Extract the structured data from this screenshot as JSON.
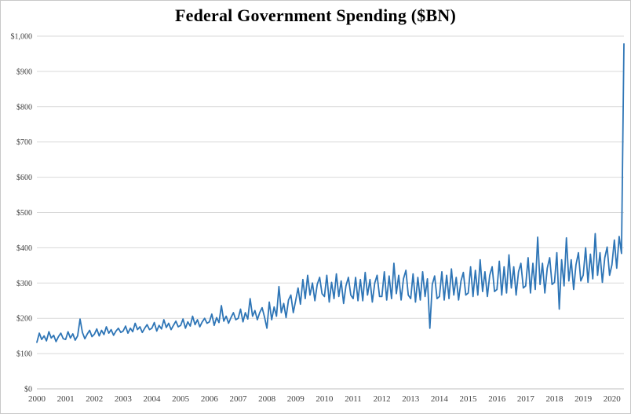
{
  "chart_data": {
    "type": "line",
    "title": "Federal Government Spending ($BN)",
    "xlabel": "",
    "ylabel": "",
    "ylim": [
      0,
      1000
    ],
    "ytick_step": 100,
    "ytick_labels": [
      "$0",
      "$100",
      "$200",
      "$300",
      "$400",
      "$500",
      "$600",
      "$700",
      "$800",
      "$900",
      "$1,000"
    ],
    "grid": "horizontal",
    "legend": "none",
    "x_start_year": 2000,
    "points_per_year": 12,
    "x_tick_years": [
      2000,
      2001,
      2002,
      2003,
      2004,
      2005,
      2006,
      2007,
      2008,
      2009,
      2010,
      2011,
      2012,
      2013,
      2014,
      2015,
      2016,
      2017,
      2018,
      2019,
      2020
    ],
    "series": [
      {
        "name": "Federal Government Spending",
        "color": "#2E75B6",
        "values": [
          132,
          158,
          140,
          150,
          136,
          162,
          144,
          152,
          134,
          148,
          158,
          142,
          140,
          162,
          144,
          156,
          138,
          150,
          198,
          160,
          142,
          155,
          166,
          148,
          155,
          170,
          150,
          166,
          154,
          176,
          158,
          168,
          152,
          164,
          172,
          160,
          164,
          178,
          158,
          172,
          162,
          186,
          168,
          176,
          160,
          172,
          182,
          168,
          172,
          188,
          164,
          180,
          170,
          196,
          174,
          186,
          168,
          180,
          192,
          176,
          180,
          198,
          172,
          190,
          178,
          206,
          182,
          196,
          176,
          190,
          200,
          186,
          190,
          212,
          180,
          202,
          188,
          236,
          192,
          206,
          186,
          202,
          216,
          196,
          200,
          226,
          190,
          216,
          198,
          256,
          206,
          222,
          196,
          216,
          230,
          204,
          172,
          246,
          196,
          232,
          206,
          290,
          216,
          242,
          202,
          252,
          266,
          216,
          250,
          286,
          240,
          310,
          256,
          322,
          266,
          300,
          250,
          296,
          316,
          270,
          262,
          322,
          246,
          302,
          256,
          326,
          262,
          306,
          242,
          292,
          316,
          266,
          256,
          316,
          250,
          310,
          250,
          330,
          266,
          310,
          246,
          300,
          322,
          262,
          262,
          332,
          252,
          320,
          256,
          356,
          270,
          322,
          252,
          312,
          336,
          266,
          256,
          326,
          246,
          316,
          252,
          332,
          262,
          312,
          172,
          296,
          320,
          256,
          262,
          332,
          252,
          322,
          256,
          340,
          266,
          316,
          252,
          306,
          330,
          266,
          272,
          346,
          262,
          336,
          266,
          366,
          276,
          332,
          262,
          322,
          346,
          276,
          282,
          362,
          266,
          346,
          272,
          380,
          286,
          346,
          266,
          332,
          356,
          286,
          292,
          372,
          272,
          356,
          282,
          430,
          296,
          356,
          272,
          342,
          372,
          296,
          302,
          386,
          226,
          366,
          292,
          428,
          306,
          366,
          282,
          352,
          386,
          306,
          322,
          400,
          302,
          382,
          312,
          440,
          322,
          386,
          302,
          372,
          402,
          322,
          352,
          422,
          342,
          432,
          384,
          978
        ]
      }
    ]
  },
  "colors": {
    "line": "#2E75B6",
    "grid": "#d9d9d9",
    "axis": "#bfbfbf",
    "tick_text": "#404040",
    "background": "#ffffff"
  }
}
